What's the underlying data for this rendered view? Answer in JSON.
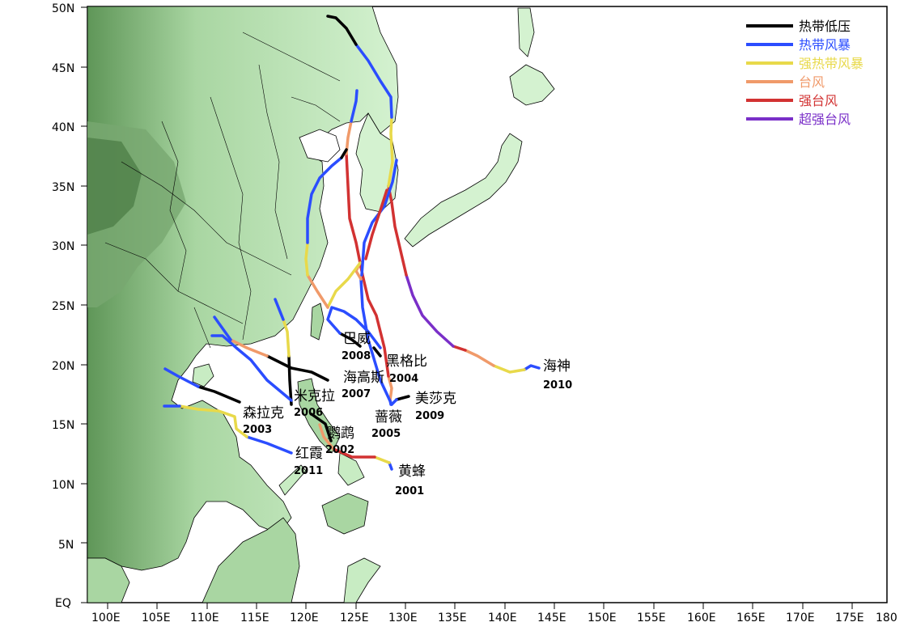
{
  "colors": {
    "land_light": "#d4f2d0",
    "land_mid": "#a9d6a2",
    "land_dark": "#5f9658",
    "ocean": "#ffffff",
    "border": "#000000"
  },
  "axes": {
    "x_ticks": [
      "100E",
      "105E",
      "110E",
      "115E",
      "120E",
      "125E",
      "130E",
      "135E",
      "140E",
      "145E",
      "150E",
      "155E",
      "160E",
      "165E",
      "170E",
      "175E",
      "180"
    ],
    "y_ticks": [
      "EQ",
      "5N",
      "10N",
      "15N",
      "20N",
      "25N",
      "30N",
      "35N",
      "40N",
      "45N",
      "50N"
    ]
  },
  "legend": [
    {
      "label": "热带低压",
      "color": "#000000"
    },
    {
      "label": "热带风暴",
      "color": "#2b4dff"
    },
    {
      "label": "强热带风暴",
      "color": "#e8d94a"
    },
    {
      "label": "台风",
      "color": "#f09a6a"
    },
    {
      "label": "强台风",
      "color": "#d23232"
    },
    {
      "label": "超强台风",
      "color": "#7a2fc8"
    }
  ],
  "storms": [
    {
      "name": "黄蜂",
      "id": "2001"
    },
    {
      "name": "鹦鹉",
      "id": "2002"
    },
    {
      "name": "森拉克",
      "id": "2003"
    },
    {
      "name": "黑格比",
      "id": "2004"
    },
    {
      "name": "蔷薇",
      "id": "2005"
    },
    {
      "name": "米克拉",
      "id": "2006"
    },
    {
      "name": "海高斯",
      "id": "2007"
    },
    {
      "name": "巴威",
      "id": "2008"
    },
    {
      "name": "美莎克",
      "id": "2009"
    },
    {
      "name": "海神",
      "id": "2010"
    },
    {
      "name": "红霞",
      "id": "2011"
    }
  ]
}
